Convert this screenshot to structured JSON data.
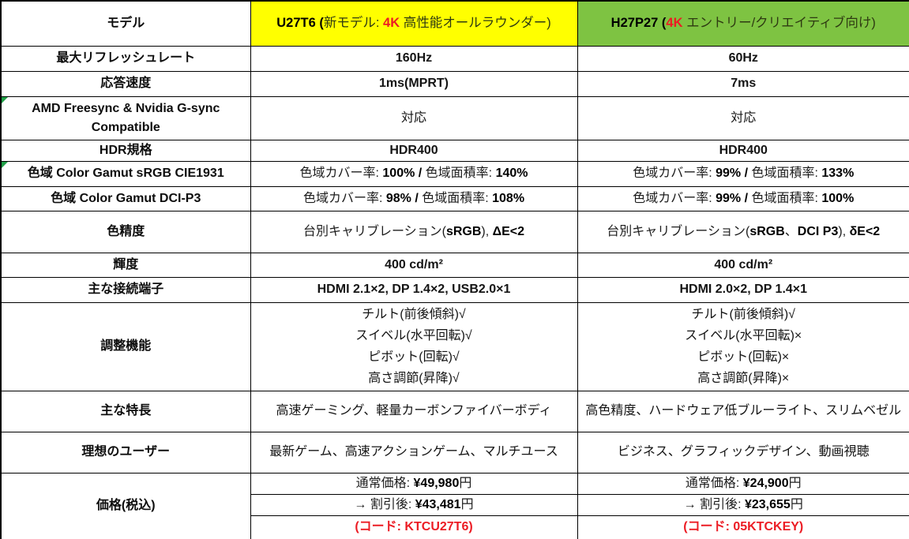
{
  "colors": {
    "header_yellow": "#FFFF00",
    "header_green": "#7EC342",
    "accent_red": "#EC1C24",
    "flag_green": "#21A048",
    "border_black": "#000000"
  },
  "table": {
    "header": {
      "label": "モデル",
      "u27t6": [
        {
          "t": "U27T6 (",
          "c": "b"
        },
        {
          "t": "新モデル: ",
          "c": "j"
        },
        {
          "t": "4K",
          "c": "r"
        },
        {
          "t": " 高性能オールラウンダー)",
          "c": "j"
        }
      ],
      "h27p27": [
        {
          "t": "H27P27 (",
          "c": "b"
        },
        {
          "t": "4K",
          "c": "r"
        },
        {
          "t": " エントリー/クリエイティブ向け)",
          "c": "j"
        }
      ]
    },
    "rows": {
      "refresh": {
        "label": "最大リフレッシュレート",
        "u": "160Hz",
        "h": "60Hz"
      },
      "response": {
        "label": "応答速度",
        "u": "1ms(MPRT)",
        "h": "7ms"
      },
      "sync": {
        "label": "AMD Freesync & Nvidia G-sync Compatible",
        "u": "対応",
        "h": "対応"
      },
      "hdr": {
        "label": "HDR規格",
        "u": "HDR400",
        "h": "HDR400"
      },
      "gamut_srgb": {
        "label": "色域 Color Gamut  sRGB CIE1931",
        "u": [
          {
            "t": "色域カバー率: ",
            "c": "j"
          },
          {
            "t": "100% / ",
            "c": "b"
          },
          {
            "t": "色域面積率: ",
            "c": "j"
          },
          {
            "t": "140%",
            "c": "b"
          }
        ],
        "h": [
          {
            "t": "色域カバー率: ",
            "c": "j"
          },
          {
            "t": "99% / ",
            "c": "b"
          },
          {
            "t": "色域面積率: ",
            "c": "j"
          },
          {
            "t": "133%",
            "c": "b"
          }
        ]
      },
      "gamut_dcip3": {
        "label": "色域 Color Gamut  DCI-P3",
        "u": [
          {
            "t": "色域カバー率: ",
            "c": "j"
          },
          {
            "t": "98% / ",
            "c": "b"
          },
          {
            "t": "色域面積率: ",
            "c": "j"
          },
          {
            "t": "108%",
            "c": "b"
          }
        ],
        "h": [
          {
            "t": "色域カバー率: ",
            "c": "j"
          },
          {
            "t": "99% / ",
            "c": "b"
          },
          {
            "t": "色域面積率: ",
            "c": "j"
          },
          {
            "t": "100%",
            "c": "b"
          }
        ]
      },
      "accuracy": {
        "label": "色精度",
        "u": [
          {
            "t": "台別キャリブレーション(",
            "c": "j"
          },
          {
            "t": "sRGB",
            "c": "b"
          },
          {
            "t": "), ",
            "c": "j"
          },
          {
            "t": "ΔE<2",
            "c": "b"
          }
        ],
        "h": [
          {
            "t": "台別キャリブレーション(",
            "c": "j"
          },
          {
            "t": "sRGB",
            "c": "b"
          },
          {
            "t": "、",
            "c": "j"
          },
          {
            "t": "DCI P3",
            "c": "b"
          },
          {
            "t": "), ",
            "c": "j"
          },
          {
            "t": "δE<2",
            "c": "b"
          }
        ]
      },
      "brightness": {
        "label": "輝度",
        "u": "400 cd/m²",
        "h": "400 cd/m²"
      },
      "ports": {
        "label": "主な接続端子",
        "u": "HDMI 2.1×2, DP 1.4×2, USB2.0×1",
        "h": "HDMI 2.0×2, DP 1.4×1"
      },
      "adjust": {
        "label": "調整機能",
        "u": [
          "チルト(前後傾斜)√",
          "スイベル(水平回転)√",
          "ピボット(回転)√",
          "高さ調節(昇降)√"
        ],
        "h": [
          "チルト(前後傾斜)√",
          "スイベル(水平回転)×",
          "ピボット(回転)×",
          "高さ調節(昇降)×"
        ]
      },
      "features": {
        "label": "主な特長",
        "u": "高速ゲーミング、軽量カーボンファイバーボディ",
        "h": "高色精度、ハードウェア低ブルーライト、スリムベゼル"
      },
      "ideal": {
        "label": "理想のユーザー",
        "u": "最新ゲーム、高速アクションゲーム、マルチユース",
        "h": "ビジネス、グラフィックデザイン、動画視聴"
      },
      "price": {
        "label": "価格(税込)",
        "normal": {
          "u": [
            {
              "t": "通常価格: ",
              "c": "j"
            },
            {
              "t": "¥49,980",
              "c": "b"
            },
            {
              "t": "円",
              "c": "j"
            }
          ],
          "h": [
            {
              "t": "通常価格: ",
              "c": "j"
            },
            {
              "t": "¥24,900",
              "c": "b"
            },
            {
              "t": "円",
              "c": "j"
            }
          ]
        },
        "discount": {
          "u": [
            {
              "t": "→ 割引後: ",
              "c": "j"
            },
            {
              "t": "¥43,481",
              "c": "b"
            },
            {
              "t": "円",
              "c": "j"
            }
          ],
          "h": [
            {
              "t": "→ 割引後: ",
              "c": "j"
            },
            {
              "t": "¥23,655",
              "c": "b"
            },
            {
              "t": "円",
              "c": "j"
            }
          ]
        },
        "code": {
          "u": "(コード: KTCU27T6)",
          "h": "(コード: 05KTCKEY)"
        }
      }
    }
  }
}
